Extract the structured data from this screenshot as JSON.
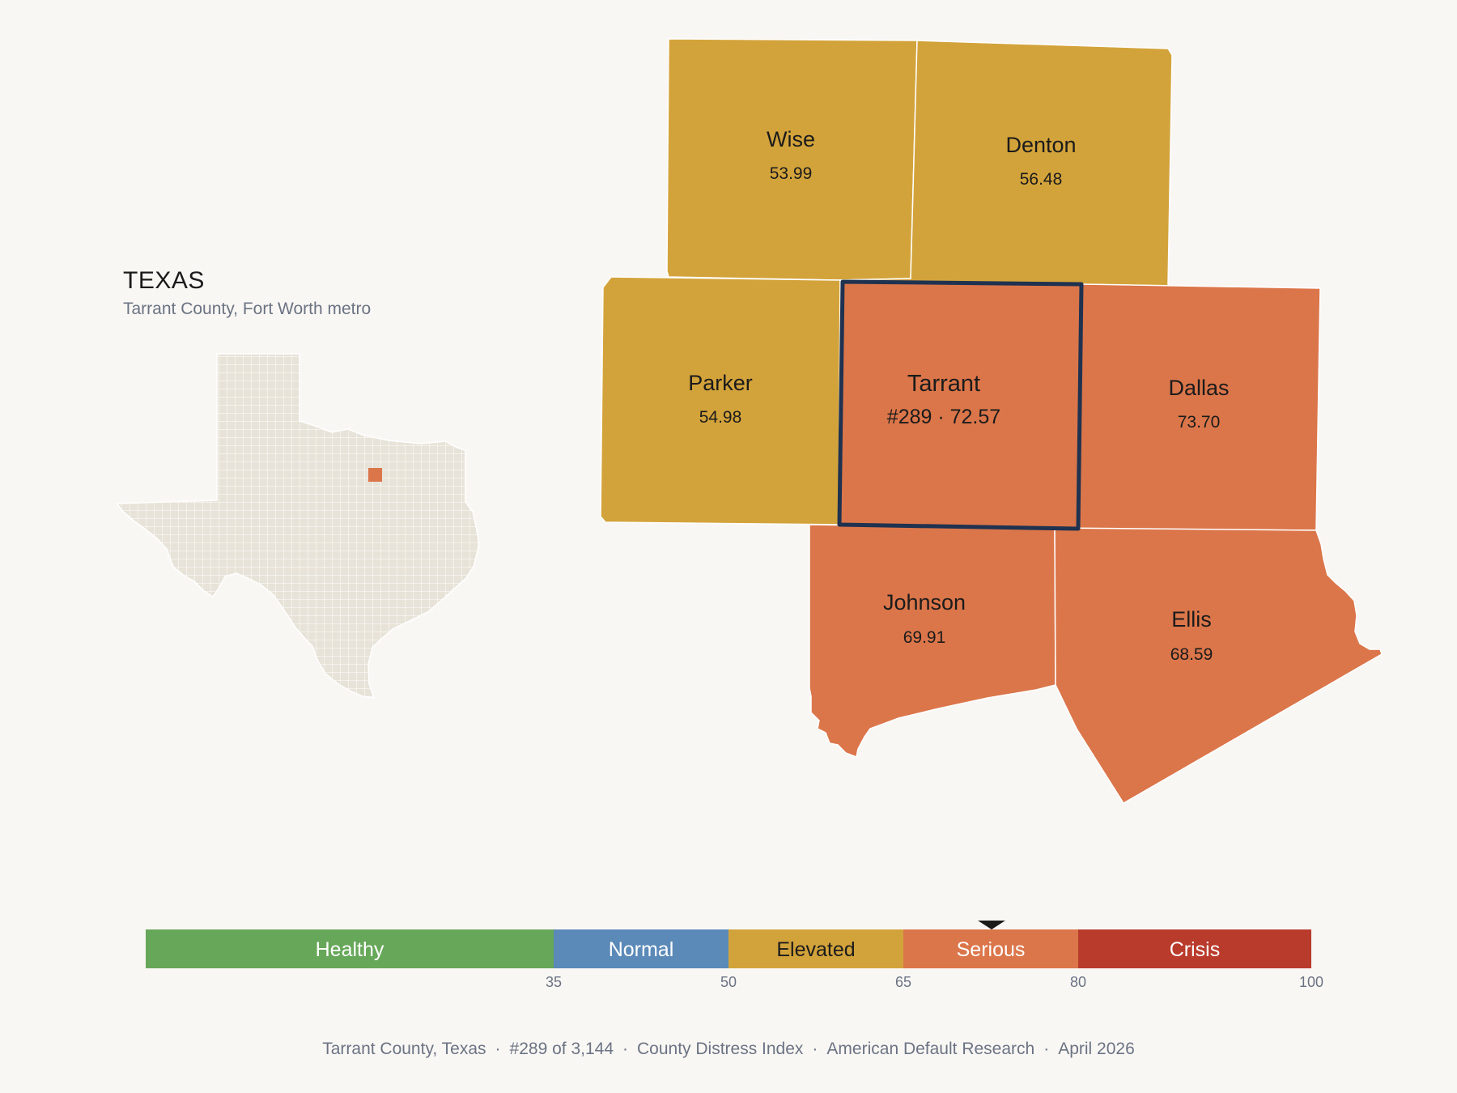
{
  "inset": {
    "state_name": "TEXAS",
    "subtitle": "Tarrant County, Fort Worth metro"
  },
  "counties": {
    "wise": {
      "name": "Wise",
      "value": "53.99"
    },
    "denton": {
      "name": "Denton",
      "value": "56.48"
    },
    "parker": {
      "name": "Parker",
      "value": "54.98"
    },
    "tarrant": {
      "name": "Tarrant",
      "value": "#289 · 72.57"
    },
    "dallas": {
      "name": "Dallas",
      "value": "73.70"
    },
    "johnson": {
      "name": "Johnson",
      "value": "69.91"
    },
    "ellis": {
      "name": "Ellis",
      "value": "68.59"
    }
  },
  "legend": {
    "bands": [
      {
        "label": "Healthy",
        "color": "#67a759",
        "min": 0,
        "max": 35
      },
      {
        "label": "Normal",
        "color": "#5b8ab8",
        "min": 35,
        "max": 50
      },
      {
        "label": "Elevated",
        "color": "#d3a33b",
        "min": 50,
        "max": 65
      },
      {
        "label": "Serious",
        "color": "#db764a",
        "min": 65,
        "max": 80
      },
      {
        "label": "Crisis",
        "color": "#b93b2c",
        "min": 80,
        "max": 100
      }
    ],
    "ticks": [
      "35",
      "50",
      "65",
      "80",
      "100"
    ],
    "marker_value": 72.57
  },
  "footer": {
    "county": "Tarrant County, Texas",
    "rank": "#289 of 3,144",
    "index": "County Distress Index",
    "org": "American Default Research",
    "date": "April 2026"
  },
  "colors": {
    "background": "#f9f7f4",
    "elevated": "#d3a33b",
    "serious": "#db764a",
    "highlight_outline": "#1f3250",
    "state_fill": "#e8e3d8"
  }
}
